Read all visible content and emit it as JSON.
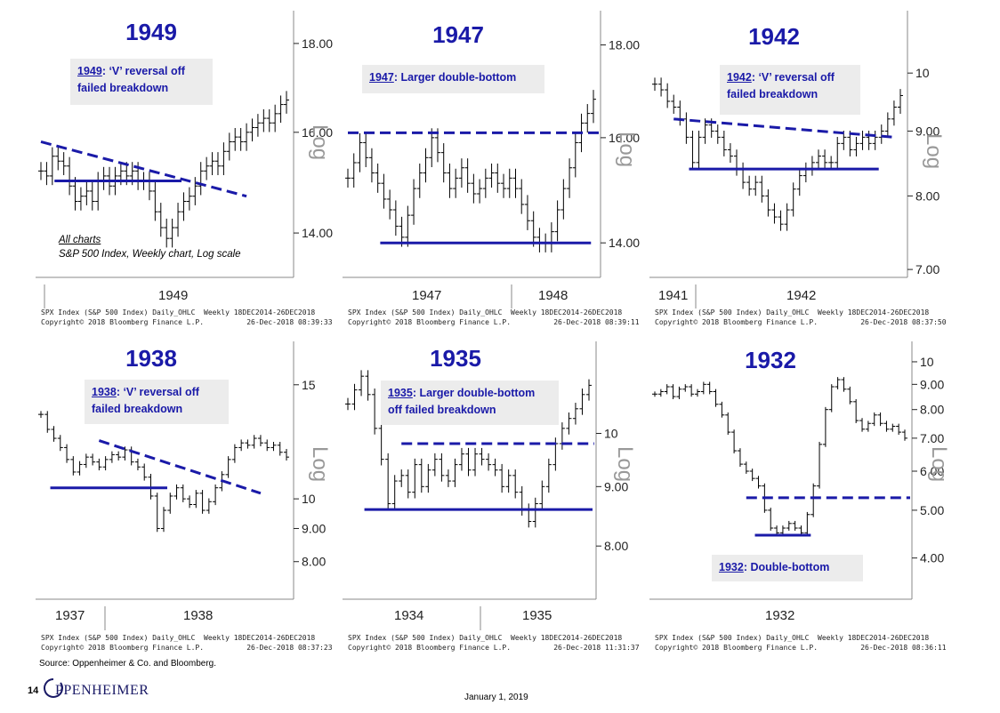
{
  "chart_data": [
    {
      "type": "ohlc",
      "title": "1949",
      "annotation_year": "1949",
      "annotation_text": ": ‘V’ reversal off\nfailed breakdown",
      "axis_label": "Log",
      "y_ticks": [
        "18.00",
        "16.00",
        "14.00"
      ],
      "y_tick_vals": [
        18,
        16,
        14
      ],
      "ylim": [
        13.2,
        18.8
      ],
      "log": true,
      "x_labels": [
        "1949"
      ],
      "footer_left": "SPX Index (S&P 500 Index) Daily_OHLC  Weekly 18DEC2014-26DEC2018\nCopyright© 2018 Bloomberg Finance L.P.          26-Dec-2018 08:39:33",
      "prices": [
        15.2,
        15.1,
        15.5,
        15.4,
        15.3,
        14.9,
        14.6,
        14.7,
        14.8,
        14.6,
        15.0,
        15.1,
        14.9,
        15.1,
        15.2,
        15.1,
        15.2,
        15.0,
        15.0,
        14.8,
        14.4,
        14.1,
        13.9,
        14.1,
        14.4,
        14.6,
        14.7,
        14.9,
        15.2,
        15.3,
        15.4,
        15.3,
        15.6,
        15.8,
        15.9,
        15.8,
        16.0,
        16.1,
        16.2,
        16.3,
        16.2,
        16.4,
        16.6,
        16.7
      ],
      "support": 15.0,
      "trend_from": [
        0,
        15.8
      ],
      "trend_to": [
        36,
        14.7
      ]
    },
    {
      "type": "ohlc",
      "title": "1947",
      "annotation_year": "1947",
      "annotation_text": ": Larger double-bottom",
      "axis_label": "Log",
      "y_ticks": [
        "18.00",
        "16.00",
        "14.00"
      ],
      "y_tick_vals": [
        18,
        16,
        14
      ],
      "ylim": [
        13.4,
        18.8
      ],
      "log": true,
      "x_labels": [
        "1947",
        "1948"
      ],
      "footer_left": "SPX Index (S&P 500 Index) Daily_OHLC  Weekly 18DEC2014-26DEC2018\nCopyright© 2018 Bloomberg Finance L.P.          26-Dec-2018 08:39:11",
      "prices": [
        15.2,
        15.5,
        15.9,
        15.6,
        15.3,
        15.1,
        14.8,
        14.6,
        14.3,
        14.1,
        14.5,
        15.0,
        15.3,
        15.6,
        16.0,
        15.7,
        15.3,
        15.0,
        15.2,
        15.4,
        15.1,
        14.9,
        15.0,
        15.2,
        15.3,
        15.1,
        15.0,
        15.2,
        15.0,
        14.7,
        14.4,
        14.1,
        14.0,
        14.0,
        14.2,
        14.6,
        15.0,
        15.4,
        15.9,
        16.3,
        16.5,
        16.8
      ],
      "support": 14.0,
      "resistance": 16.1
    },
    {
      "type": "ohlc",
      "title": "1942",
      "annotation_year": "1942",
      "annotation_text": ": ‘V’ reversal off\nfailed breakdown",
      "axis_label": "Log",
      "y_ticks": [
        "10",
        "9.00",
        "8.00",
        "7.00"
      ],
      "y_tick_vals": [
        10,
        9,
        8,
        7
      ],
      "ylim": [
        6.9,
        11.2
      ],
      "log": true,
      "x_labels": [
        "1941",
        "1942"
      ],
      "footer_left": "SPX Index (S&P 500 Index) Daily_OHLC  Weekly 18DEC2014-26DEC2018\nCopyright© 2018 Bloomberg Finance L.P.          26-Dec-2018 08:37:50",
      "prices": [
        9.8,
        9.7,
        9.5,
        9.4,
        9.2,
        8.9,
        8.5,
        8.9,
        9.1,
        9.0,
        8.9,
        8.7,
        8.6,
        8.4,
        8.2,
        8.1,
        8.2,
        8.0,
        7.8,
        7.7,
        7.6,
        7.8,
        8.1,
        8.3,
        8.4,
        8.5,
        8.6,
        8.5,
        8.5,
        8.8,
        8.9,
        8.7,
        8.8,
        8.9,
        8.8,
        8.9,
        9.0,
        9.2,
        9.4,
        9.6
      ],
      "support": 8.4,
      "trend_from": [
        3,
        9.2
      ],
      "trend_to": [
        38,
        8.9
      ]
    },
    {
      "type": "ohlc",
      "title": "1938",
      "annotation_year": "1938",
      "annotation_text": ": ‘V’ reversal off\nfailed breakdown",
      "axis_label": "Log",
      "y_ticks": [
        "15",
        "10",
        "9.00",
        "8.00"
      ],
      "y_tick_vals": [
        15,
        10,
        9,
        8
      ],
      "ylim": [
        7.0,
        17.5
      ],
      "log": true,
      "x_labels": [
        "1937",
        "1938"
      ],
      "footer_left": "SPX Index (S&P 500 Index) Daily_OHLC  Weekly 18DEC2014-26DEC2018\nCopyright© 2018 Bloomberg Finance L.P.          26-Dec-2018 08:37:23",
      "prices": [
        13.5,
        12.8,
        12.4,
        12.0,
        11.5,
        11.0,
        11.3,
        11.6,
        11.4,
        11.2,
        11.5,
        11.7,
        11.6,
        11.9,
        11.4,
        11.2,
        10.8,
        10.1,
        9.0,
        9.6,
        10.1,
        10.4,
        10.0,
        9.8,
        10.2,
        9.6,
        9.9,
        10.4,
        10.9,
        11.5,
        12.0,
        12.2,
        12.1,
        12.4,
        12.2,
        12.0,
        12.1,
        11.8,
        11.6
      ],
      "support": 10.4,
      "trend_from": [
        9,
        12.3
      ],
      "trend_to": [
        34,
        10.2
      ]
    },
    {
      "type": "ohlc",
      "title": "1935",
      "annotation_year": "1935",
      "annotation_text": ": Larger double-bottom\noff failed breakdown",
      "axis_label": "Log",
      "y_ticks": [
        "10",
        "9.00",
        "8.00"
      ],
      "y_tick_vals": [
        10,
        9,
        8
      ],
      "ylim": [
        7.2,
        12.0
      ],
      "log": true,
      "x_labels": [
        "1934",
        "1935"
      ],
      "footer_left": "SPX Index (S&P 500 Index) Daily_OHLC  Weekly 18DEC2014-26DEC2018\nCopyright© 2018 Bloomberg Finance L.P.          26-Dec-2018 11:31:37",
      "prices": [
        10.6,
        10.9,
        11.2,
        10.8,
        10.1,
        9.5,
        8.7,
        9.1,
        9.2,
        8.9,
        9.4,
        9.0,
        9.3,
        9.5,
        9.2,
        9.1,
        9.4,
        9.6,
        9.3,
        9.6,
        9.5,
        9.4,
        9.3,
        9.0,
        9.2,
        8.9,
        8.6,
        8.4,
        8.7,
        9.0,
        9.4,
        9.8,
        10.1,
        10.3,
        10.5,
        10.8,
        11.0
      ],
      "support": 8.6,
      "resistance": 9.8
    },
    {
      "type": "ohlc",
      "title": "1932",
      "annotation_year": "1932",
      "annotation_text": ": Double-bottom",
      "axis_label": "Log",
      "y_ticks": [
        "10",
        "9.00",
        "8.00",
        "7.00",
        "6.00",
        "5.00",
        "4.00"
      ],
      "y_tick_vals": [
        10,
        9,
        8,
        7,
        6,
        5,
        4
      ],
      "ylim": [
        3.3,
        11.0
      ],
      "log": true,
      "x_labels": [
        "1932"
      ],
      "footer_left": "SPX Index (S&P 500 Index) Daily_OHLC  Weekly 18DEC2014-26DEC2018\nCopyright© 2018 Bloomberg Finance L.P.          26-Dec-2018 08:36:11",
      "prices": [
        8.6,
        8.7,
        8.9,
        8.5,
        8.8,
        8.9,
        8.6,
        8.7,
        9.0,
        8.7,
        8.2,
        7.8,
        7.2,
        6.6,
        6.2,
        6.0,
        5.8,
        5.6,
        5.0,
        4.6,
        4.5,
        4.6,
        4.7,
        4.6,
        4.5,
        4.9,
        5.6,
        6.8,
        8.0,
        8.9,
        9.2,
        8.8,
        8.3,
        7.6,
        7.3,
        7.5,
        7.8,
        7.5,
        7.3,
        7.4,
        7.2,
        7.0
      ],
      "support": 4.45,
      "resistance": 5.3
    }
  ],
  "all_charts": {
    "heading": "All charts",
    "subtitle": "S&P 500 Index, Weekly chart, Log scale"
  },
  "source": "Source:  Oppenheimer & Co. and Bloomberg.",
  "page_number": "14",
  "logo_text": "OPPENHEIMER",
  "date": "January 1, 2019",
  "colors": {
    "accent": "#1a1aa8",
    "box": "#ececec",
    "axis": "#999999"
  }
}
